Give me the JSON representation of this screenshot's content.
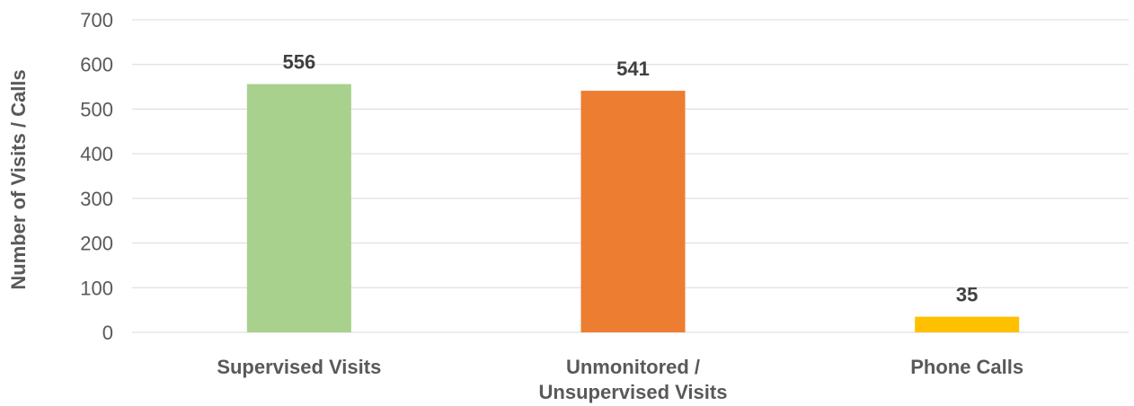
{
  "chart_data": {
    "type": "bar",
    "categories": [
      "Supervised Visits",
      "Unmonitored / Unsupervised Visits",
      "Phone Calls"
    ],
    "category_lines": [
      [
        "Supervised Visits"
      ],
      [
        "Unmonitored /",
        "Unsupervised Visits"
      ],
      [
        "Phone Calls"
      ]
    ],
    "values": [
      556,
      541,
      35
    ],
    "data_labels": [
      "556",
      "541",
      "35"
    ],
    "bar_colors": [
      "#a9d18e",
      "#ed7d31",
      "#ffc000"
    ],
    "ylabel": "Number of Visits / Calls",
    "ylim": [
      0,
      700
    ],
    "yticks": [
      0,
      100,
      200,
      300,
      400,
      500,
      600,
      700
    ],
    "grid": true
  }
}
